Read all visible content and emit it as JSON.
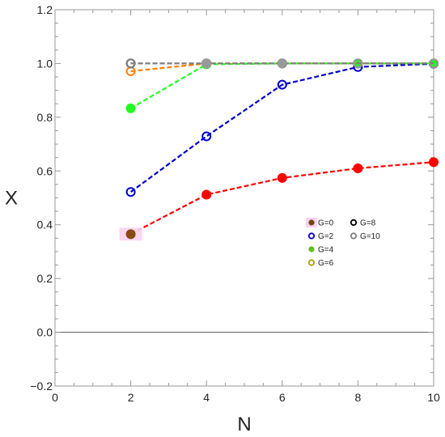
{
  "chart_data": {
    "type": "line",
    "xlabel": "N",
    "ylabel": "X",
    "xlim": [
      0,
      10
    ],
    "ylim": [
      -0.2,
      1.2
    ],
    "xticks": [
      0,
      2,
      4,
      6,
      8,
      10
    ],
    "yticks": [
      -0.2,
      0.0,
      0.2,
      0.4,
      0.6,
      0.8,
      1.0,
      1.2
    ],
    "ytick_labels": [
      "−0.2",
      "0.0",
      "0.2",
      "0.4",
      "0.6",
      "0.8",
      "1.0",
      "1.2"
    ],
    "zero_line": true,
    "grid": false,
    "legend_position": "right-center",
    "legend_columns": 2,
    "series": [
      {
        "name": "G=0",
        "legend_color": "#6b4a10",
        "color": "#ff0000",
        "marker": "filled",
        "x": [
          2,
          4,
          6,
          8,
          10
        ],
        "y": [
          0.365,
          0.512,
          0.574,
          0.61,
          0.633
        ]
      },
      {
        "name": "G=2",
        "legend_color": "#0000cc",
        "color": "#0000cc",
        "marker": "open",
        "x": [
          2,
          4,
          6,
          8,
          10
        ],
        "y": [
          0.522,
          0.729,
          0.921,
          0.987,
          0.999
        ]
      },
      {
        "name": "G=4",
        "legend_color": "#5fbf1f",
        "color": "#22ff22",
        "marker": "filled",
        "x": [
          2,
          4,
          6,
          8,
          10
        ],
        "y": [
          0.833,
          0.997,
          1.0,
          1.0,
          1.0
        ]
      },
      {
        "name": "G=6",
        "legend_color": "#b0a000",
        "color": "#ff8000",
        "marker": "open",
        "x": [
          2,
          4,
          6,
          8,
          10
        ],
        "y": [
          0.971,
          1.0,
          1.0,
          1.0,
          1.0
        ]
      },
      {
        "name": "G=8",
        "legend_color": "#000000",
        "color": "#000000",
        "marker": "open",
        "x": [
          2,
          4,
          6,
          8,
          10
        ],
        "y": [
          1.0,
          1.0,
          1.0,
          1.0,
          1.0
        ]
      },
      {
        "name": "G=10",
        "legend_color": "#808080",
        "color": "#808080",
        "marker": "open",
        "x": [
          2,
          4,
          6,
          8,
          10
        ],
        "y": [
          1.0,
          1.0,
          1.0,
          1.0,
          1.0
        ]
      }
    ],
    "overlay_markers": [
      {
        "x": 2,
        "y": 0.365,
        "color": "#8b4a10",
        "style": "filled",
        "halo": "#fad2f0"
      },
      {
        "x": 4,
        "y": 1.0,
        "color": "#999999",
        "style": "filled"
      },
      {
        "x": 6,
        "y": 1.0,
        "color": "#999999",
        "style": "filled"
      },
      {
        "x": 8,
        "y": 1.0,
        "color": "#999999",
        "style": "open"
      },
      {
        "x": 10,
        "y": 1.0,
        "color": "#999999",
        "style": "open"
      }
    ]
  }
}
